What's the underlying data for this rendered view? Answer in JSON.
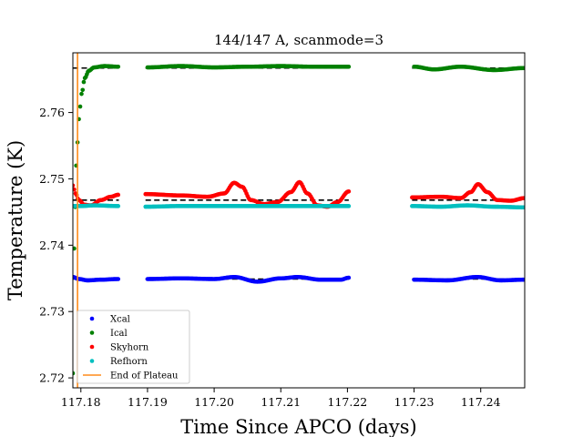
{
  "chart_data": {
    "type": "scatter",
    "title": "144/147 A, scanmode=3",
    "xlabel": "Time Since APCO (days)",
    "ylabel": "Temperature (K)",
    "xlim": [
      117.1788,
      117.2466
    ],
    "ylim": [
      2.7185,
      2.769
    ],
    "x_ticks": [
      117.18,
      117.19,
      117.2,
      117.21,
      117.22,
      117.23,
      117.24
    ],
    "x_tick_labels": [
      "117.18",
      "117.19",
      "117.20",
      "117.21",
      "117.22",
      "117.23",
      "117.24"
    ],
    "y_ticks": [
      2.72,
      2.73,
      2.74,
      2.75,
      2.76
    ],
    "y_tick_labels": [
      "2.72",
      "2.73",
      "2.74",
      "2.75",
      "2.76"
    ],
    "grid": false,
    "legend_position": "lower-left",
    "gaps": [
      [
        117.1857,
        117.1897
      ],
      [
        117.2202,
        117.2297
      ]
    ],
    "reference_lines": [
      {
        "y": 2.7667,
        "style": "dashed",
        "color": "#000000"
      },
      {
        "y": 2.7468,
        "style": "dashed",
        "color": "#000000"
      },
      {
        "y": 2.7459,
        "style": "dashed",
        "color": "#000000"
      },
      {
        "y": 2.7349,
        "style": "dashed",
        "color": "#000000"
      }
    ],
    "vertical_line": {
      "name": "End of Plateau",
      "x": 117.1795,
      "color": "#ff8c1a"
    },
    "series": [
      {
        "name": "Xcal",
        "color": "#0000ff",
        "points": [
          [
            117.1788,
            2.7352
          ],
          [
            117.1797,
            2.7349
          ],
          [
            117.181,
            2.7347
          ],
          [
            117.183,
            2.7348
          ],
          [
            117.1856,
            2.7349
          ],
          [
            117.19,
            2.7349
          ],
          [
            117.195,
            2.735
          ],
          [
            117.2,
            2.7349
          ],
          [
            117.203,
            2.7352
          ],
          [
            117.2065,
            2.7345
          ],
          [
            117.21,
            2.735
          ],
          [
            117.2125,
            2.7352
          ],
          [
            117.216,
            2.7348
          ],
          [
            117.219,
            2.7348
          ],
          [
            117.2202,
            2.7351
          ],
          [
            117.23,
            2.7348
          ],
          [
            117.235,
            2.7347
          ],
          [
            117.2395,
            2.7352
          ],
          [
            117.243,
            2.7347
          ],
          [
            117.2466,
            2.7348
          ]
        ]
      },
      {
        "name": "Ical",
        "color": "#008000",
        "points": [
          [
            117.1788,
            2.7207
          ],
          [
            117.179,
            2.7395
          ],
          [
            117.1793,
            2.752
          ],
          [
            117.1797,
            2.759
          ],
          [
            117.1801,
            2.7628
          ],
          [
            117.1806,
            2.7652
          ],
          [
            117.1812,
            2.7663
          ],
          [
            117.182,
            2.7668
          ],
          [
            117.1835,
            2.767
          ],
          [
            117.1856,
            2.7669
          ],
          [
            117.19,
            2.7668
          ],
          [
            117.195,
            2.767
          ],
          [
            117.2,
            2.7668
          ],
          [
            117.205,
            2.7669
          ],
          [
            117.21,
            2.767
          ],
          [
            117.215,
            2.7669
          ],
          [
            117.2202,
            2.7669
          ],
          [
            117.23,
            2.7669
          ],
          [
            117.233,
            2.7665
          ],
          [
            117.237,
            2.7669
          ],
          [
            117.242,
            2.7664
          ],
          [
            117.2466,
            2.7667
          ]
        ]
      },
      {
        "name": "Skyhorn",
        "color": "#ff0000",
        "points": [
          [
            117.1788,
            2.749
          ],
          [
            117.1792,
            2.7478
          ],
          [
            117.1797,
            2.7468
          ],
          [
            117.1805,
            2.7461
          ],
          [
            117.1815,
            2.746
          ],
          [
            117.183,
            2.7468
          ],
          [
            117.1845,
            2.7473
          ],
          [
            117.1856,
            2.7476
          ],
          [
            117.1897,
            2.7477
          ],
          [
            117.195,
            2.7475
          ],
          [
            117.199,
            2.7473
          ],
          [
            117.2015,
            2.7478
          ],
          [
            117.203,
            2.7494
          ],
          [
            117.2042,
            2.7488
          ],
          [
            117.2055,
            2.7468
          ],
          [
            117.2075,
            2.7462
          ],
          [
            117.2095,
            2.7465
          ],
          [
            117.2115,
            2.748
          ],
          [
            117.2128,
            2.7495
          ],
          [
            117.214,
            2.7478
          ],
          [
            117.2155,
            2.746
          ],
          [
            117.217,
            2.7458
          ],
          [
            117.2185,
            2.7465
          ],
          [
            117.2202,
            2.7481
          ],
          [
            117.2297,
            2.7472
          ],
          [
            117.234,
            2.7473
          ],
          [
            117.237,
            2.7471
          ],
          [
            117.2385,
            2.748
          ],
          [
            117.2396,
            2.7492
          ],
          [
            117.241,
            2.748
          ],
          [
            117.2425,
            2.7468
          ],
          [
            117.2445,
            2.7467
          ],
          [
            117.2466,
            2.7471
          ]
        ]
      },
      {
        "name": "Refhorn",
        "color": "#00bfbf",
        "points": [
          [
            117.1788,
            2.7459
          ],
          [
            117.18,
            2.7459
          ],
          [
            117.182,
            2.746
          ],
          [
            117.1856,
            2.7459
          ],
          [
            117.1897,
            2.7458
          ],
          [
            117.195,
            2.7459
          ],
          [
            117.2,
            2.7459
          ],
          [
            117.205,
            2.7459
          ],
          [
            117.21,
            2.7459
          ],
          [
            117.215,
            2.7459
          ],
          [
            117.2202,
            2.7459
          ],
          [
            117.2297,
            2.7459
          ],
          [
            117.234,
            2.7458
          ],
          [
            117.238,
            2.746
          ],
          [
            117.242,
            2.7458
          ],
          [
            117.2466,
            2.7457
          ]
        ]
      }
    ]
  }
}
